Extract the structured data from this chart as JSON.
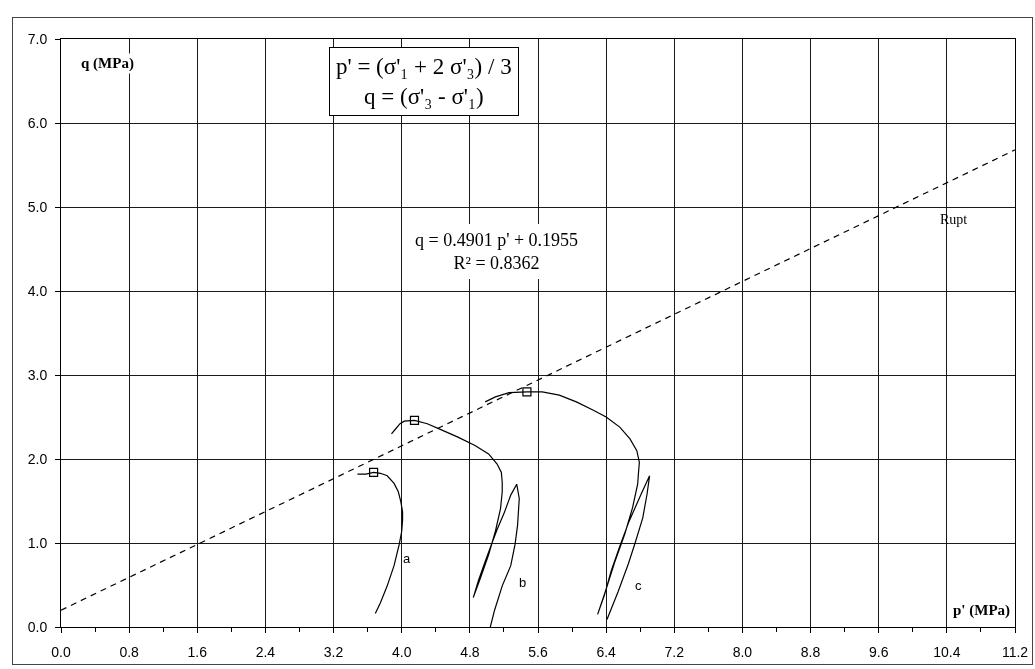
{
  "chart_data": {
    "type": "line",
    "xlabel": "p' (MPa)",
    "ylabel": "q (MPa)",
    "xlim": [
      0,
      11.2
    ],
    "ylim": [
      0,
      7
    ],
    "xticks": [
      {
        "value": 0,
        "label": "0.0"
      },
      {
        "value": 0.4,
        "label": null
      },
      {
        "value": 0.8,
        "label": "0.8"
      },
      {
        "value": 1.2,
        "label": null
      },
      {
        "value": 1.6,
        "label": "1.6"
      },
      {
        "value": 2,
        "label": null
      },
      {
        "value": 2.4,
        "label": "2.4"
      },
      {
        "value": 2.8,
        "label": null
      },
      {
        "value": 3.2,
        "label": "3.2"
      },
      {
        "value": 3.6,
        "label": null
      },
      {
        "value": 4,
        "label": "4.0"
      },
      {
        "value": 4.4,
        "label": null
      },
      {
        "value": 4.8,
        "label": "4.8"
      },
      {
        "value": 5.2,
        "label": null
      },
      {
        "value": 5.6,
        "label": "5.6"
      },
      {
        "value": 6,
        "label": null
      },
      {
        "value": 6.4,
        "label": "6.4"
      },
      {
        "value": 6.8,
        "label": null
      },
      {
        "value": 7.2,
        "label": "7.2"
      },
      {
        "value": 7.6,
        "label": null
      },
      {
        "value": 8,
        "label": "8.0"
      },
      {
        "value": 8.4,
        "label": null
      },
      {
        "value": 8.8,
        "label": "8.8"
      },
      {
        "value": 9.2,
        "label": null
      },
      {
        "value": 9.6,
        "label": "9.6"
      },
      {
        "value": 10,
        "label": null
      },
      {
        "value": 10.4,
        "label": "10.4"
      },
      {
        "value": 10.8,
        "label": null
      },
      {
        "value": 11.2,
        "label": "11.2"
      }
    ],
    "yticks": [
      {
        "value": 0,
        "label": "0.0"
      },
      {
        "value": 1,
        "label": "1.0"
      },
      {
        "value": 2,
        "label": "2.0"
      },
      {
        "value": 3,
        "label": "3.0"
      },
      {
        "value": 4,
        "label": "4.0"
      },
      {
        "value": 5,
        "label": "5.0"
      },
      {
        "value": 6,
        "label": "6.0"
      },
      {
        "value": 7,
        "label": "7.0"
      }
    ],
    "grid": true,
    "series": [
      {
        "name": "a",
        "color": "#000000",
        "x": [
          3.69,
          3.75,
          3.83,
          3.91,
          3.97,
          4.0,
          4.01,
          4.01,
          3.99,
          3.96,
          3.91,
          3.83,
          3.75,
          3.67,
          3.58,
          3.48
        ],
        "values": [
          0.16,
          0.29,
          0.49,
          0.73,
          0.98,
          1.14,
          1.27,
          1.37,
          1.49,
          1.61,
          1.71,
          1.8,
          1.83,
          1.84,
          1.82,
          1.82
        ]
      },
      {
        "name": "b",
        "color": "#000000",
        "x": [
          5.04,
          5.09,
          5.18,
          5.28,
          5.33,
          5.36,
          5.38,
          5.35,
          5.28,
          5.2,
          5.12,
          5.06,
          4.98,
          4.9,
          4.84,
          4.92,
          5.02,
          5.1,
          5.16,
          5.18,
          5.18,
          5.17,
          5.12,
          5.02,
          4.86,
          4.66,
          4.46,
          4.3,
          4.15,
          4.03,
          3.98,
          3.93,
          3.88
        ],
        "values": [
          0.0,
          0.2,
          0.49,
          0.73,
          0.98,
          1.21,
          1.53,
          1.7,
          1.57,
          1.35,
          1.16,
          1.0,
          0.78,
          0.55,
          0.35,
          0.57,
          0.86,
          1.14,
          1.41,
          1.61,
          1.72,
          1.84,
          1.94,
          2.06,
          2.16,
          2.26,
          2.35,
          2.42,
          2.46,
          2.45,
          2.42,
          2.36,
          2.3
        ]
      },
      {
        "name": "c",
        "color": "#000000",
        "x": [
          6.41,
          6.54,
          6.66,
          6.74,
          6.83,
          6.88,
          6.91,
          6.81,
          6.67,
          6.57,
          6.46,
          6.38,
          6.3,
          6.39,
          6.5,
          6.62,
          6.71,
          6.77,
          6.78,
          6.79,
          6.76,
          6.68,
          6.56,
          6.4,
          6.25,
          6.05,
          5.85,
          5.65,
          5.47,
          5.26,
          5.1,
          4.98
        ],
        "values": [
          0.09,
          0.42,
          0.75,
          1.0,
          1.3,
          1.58,
          1.8,
          1.58,
          1.26,
          0.99,
          0.67,
          0.38,
          0.15,
          0.42,
          0.77,
          1.11,
          1.42,
          1.7,
          1.84,
          1.96,
          2.1,
          2.24,
          2.38,
          2.5,
          2.58,
          2.68,
          2.76,
          2.8,
          2.8,
          2.79,
          2.74,
          2.68
        ]
      },
      {
        "type": "scatter",
        "marker": "square",
        "color": "#000000",
        "x": [
          3.67,
          4.15,
          5.47
        ],
        "values": [
          1.84,
          2.46,
          2.8
        ]
      },
      {
        "name": "Rupt",
        "line_style": "dashed",
        "color": "#000000",
        "x": [
          0,
          11.2
        ],
        "values": [
          0.2,
          5.68
        ]
      }
    ],
    "annotations": [
      "p' = (σ'₁ + 2 σ'₃) / 3\nq = (σ'₃ - σ'₁)",
      "q = 0.4901 p' + 0.1955\nR² = 0.8362"
    ]
  }
}
